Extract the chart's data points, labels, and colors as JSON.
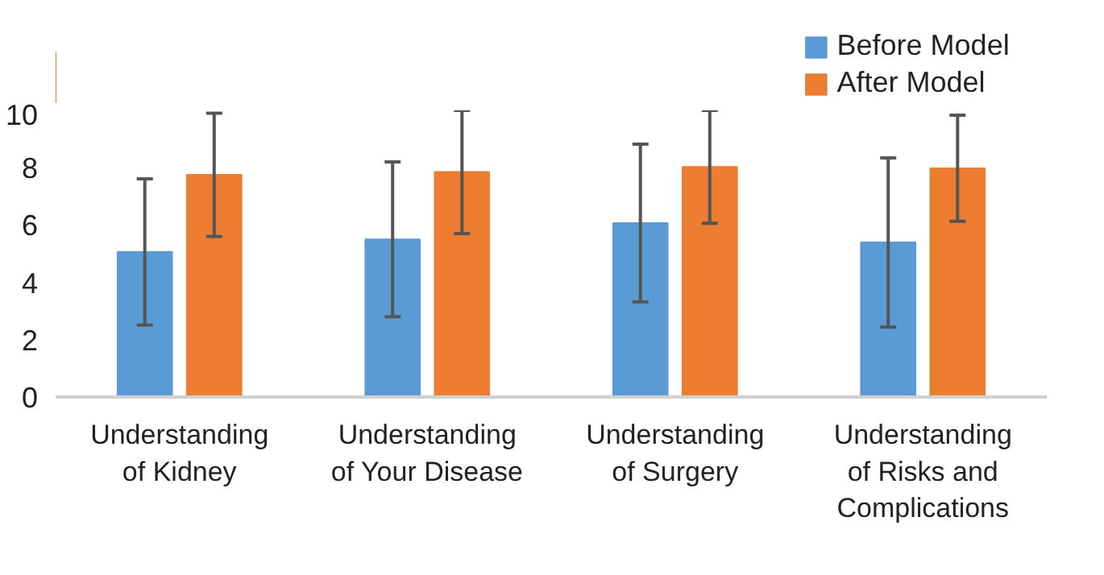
{
  "chart_data": {
    "type": "bar",
    "categories": [
      "Understanding of Kidney",
      "Understanding of Your Disease",
      "Understanding of Surgery",
      "Understanding of Risks and Complications"
    ],
    "series": [
      {
        "name": "Before Model",
        "color": "#5b9bd5",
        "values": [
          5.06,
          5.5,
          6.07,
          5.39
        ],
        "errors": [
          2.55,
          2.7,
          2.75,
          2.95
        ]
      },
      {
        "name": "After Model",
        "color": "#ed7d31",
        "values": [
          7.75,
          7.85,
          8.03,
          7.98
        ],
        "errors": [
          2.15,
          2.15,
          1.97,
          1.85
        ]
      }
    ],
    "ylim": [
      0,
      10
    ],
    "yticks": [
      0,
      2,
      4,
      6,
      8,
      10
    ],
    "grid": false,
    "legend": "top right"
  }
}
